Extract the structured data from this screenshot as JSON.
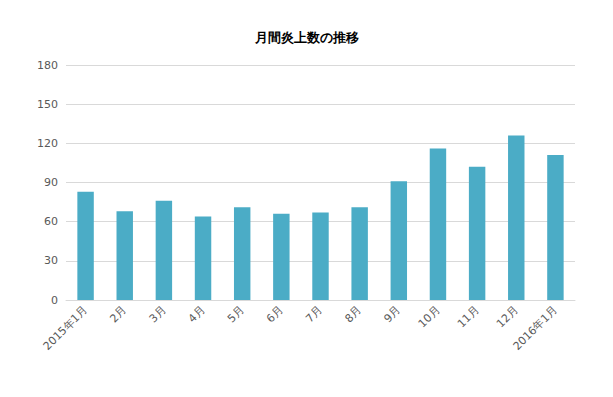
{
  "chart_data": {
    "type": "bar",
    "title": "月間炎上数の推移",
    "categories": [
      "2015年1月",
      "2月",
      "3月",
      "4月",
      "5月",
      "6月",
      "7月",
      "8月",
      "9月",
      "10月",
      "11月",
      "12月",
      "2016年1月"
    ],
    "values": [
      83,
      68,
      76,
      64,
      71,
      66,
      67,
      71,
      91,
      116,
      102,
      126,
      111
    ],
    "color": "#4bacc6",
    "ylim": [
      0,
      180
    ],
    "yticks": [
      0,
      30,
      60,
      90,
      120,
      150,
      180
    ],
    "grid": true
  }
}
